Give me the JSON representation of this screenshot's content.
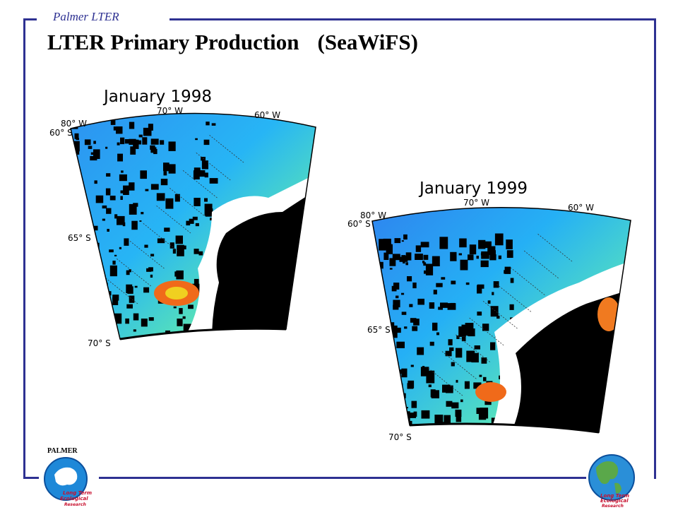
{
  "header": {
    "brand": "Palmer LTER",
    "title": "LTER Primary Production",
    "subtitle": "(SeaWiFS)"
  },
  "maps": [
    {
      "label": "January 1998",
      "lon_labels": [
        "80° W",
        "70° W",
        "60° W"
      ],
      "lat_labels": [
        "60° S",
        "65° S",
        "70° S"
      ]
    },
    {
      "label": "January 1999",
      "lon_labels": [
        "80° W",
        "70° W",
        "60° W"
      ],
      "lat_labels": [
        "60° S",
        "65° S",
        "70° S"
      ]
    }
  ],
  "logos": {
    "left_title": "PALMER",
    "left_text": [
      "Long Term",
      "Ecological",
      "Research"
    ],
    "right_text": [
      "Long Term",
      "Ecological",
      "Research"
    ]
  },
  "colors": {
    "frame": "#2e3192",
    "ocean_low": "#3a74e8",
    "ocean_mid": "#22c4f0",
    "ocean_high": "#7cf06a",
    "production_peak": "#f04a10",
    "land": "#000000",
    "ice": "#ffffff"
  }
}
